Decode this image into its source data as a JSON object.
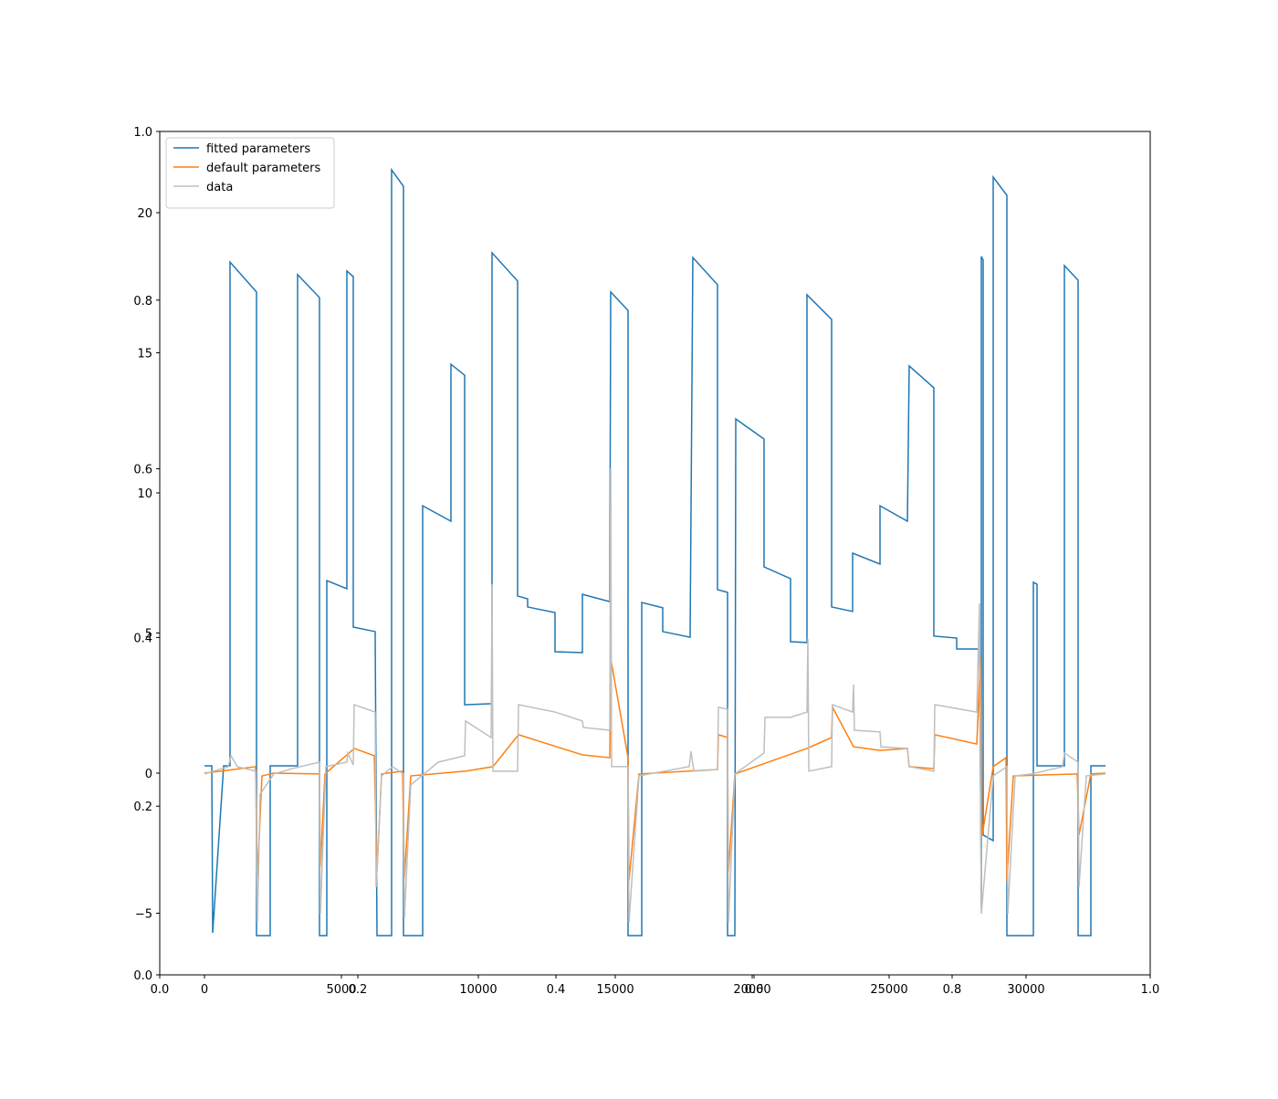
{
  "chart_data": [
    {
      "type": "axes",
      "xlim": [
        0,
        1
      ],
      "ylim": [
        0,
        1
      ],
      "xticks": [
        {
          "value": 0,
          "label": "0.0"
        },
        0.2,
        0.4,
        0.6,
        0.8,
        {
          "value": 1,
          "label": "1.0"
        }
      ],
      "yticks": [
        {
          "value": 0,
          "label": "0.0"
        },
        0.2,
        0.4,
        0.6,
        0.8,
        {
          "value": 1,
          "label": "1.0"
        }
      ]
    },
    {
      "type": "line",
      "xlim": [
        -1633,
        34533
      ],
      "ylim": [
        -7.2,
        22.9
      ],
      "xticks": [
        0,
        5000,
        10000,
        15000,
        20000,
        25000,
        30000
      ],
      "yticks": [
        {
          "value": -5,
          "label": "−5"
        },
        0,
        5,
        10,
        15,
        20
      ],
      "legend": "upper left",
      "series": [
        {
          "name": "fitted parameters",
          "color": "#1f77b4",
          "x": [
            0,
            267,
            300,
            700,
            933,
            933,
            1900,
            1900,
            2400,
            2400,
            3400,
            3400,
            4200,
            4200,
            4467,
            4467,
            5200,
            5200,
            5433,
            5433,
            6233,
            6300,
            6833,
            6833,
            7267,
            7267,
            7967,
            7967,
            9000,
            9000,
            9500,
            9500,
            10500,
            10500,
            11433,
            11433,
            11800,
            11800,
            12800,
            12800,
            13800,
            13800,
            14800,
            14833,
            15467,
            15467,
            15967,
            15967,
            16733,
            16733,
            17733,
            17833,
            18733,
            18733,
            19100,
            19100,
            19367,
            19400,
            20433,
            20433,
            21400,
            21400,
            22000,
            22000,
            22900,
            22900,
            23667,
            23667,
            24667,
            24667,
            25667,
            25733,
            26633,
            26633,
            27467,
            27467,
            28300,
            28367,
            28367,
            28433,
            28433,
            28800,
            28800,
            29300,
            29300,
            30267,
            30267,
            30400,
            30400,
            31400,
            31400,
            31900,
            31900,
            32367,
            32367,
            32900
          ],
          "values": [
            0.26,
            0.26,
            -5.7,
            0.26,
            0.26,
            18.24,
            17.17,
            -5.8,
            -5.8,
            0.26,
            0.26,
            17.79,
            16.97,
            -5.8,
            -5.8,
            6.87,
            6.58,
            17.92,
            17.72,
            5.21,
            5.05,
            -5.8,
            -5.8,
            21.53,
            20.94,
            -5.8,
            -5.8,
            9.54,
            8.99,
            14.59,
            14.2,
            2.44,
            2.48,
            18.57,
            17.56,
            6.32,
            6.22,
            5.93,
            5.73,
            4.33,
            4.3,
            6.38,
            6.12,
            17.17,
            16.51,
            -5.8,
            -5.8,
            6.09,
            5.9,
            5.05,
            4.85,
            18.4,
            17.43,
            6.55,
            6.45,
            -5.8,
            -5.8,
            12.64,
            11.92,
            7.36,
            6.94,
            4.69,
            4.66,
            17.07,
            16.19,
            5.93,
            5.77,
            7.85,
            7.46,
            9.54,
            8.99,
            14.53,
            13.75,
            4.89,
            4.82,
            4.43,
            4.43,
            -4.76,
            18.44,
            18.31,
            -2.21,
            -2.41,
            21.27,
            20.62,
            -5.8,
            -5.8,
            6.81,
            6.74,
            0.26,
            0.26,
            18.11,
            17.59,
            -5.8,
            -5.8,
            0.26,
            0.26
          ]
        },
        {
          "name": "default parameters",
          "color": "#ff7f0e",
          "x": [
            0,
            1867,
            1933,
            2100,
            2533,
            4200,
            4233,
            4400,
            5467,
            6200,
            6300,
            6467,
            7233,
            7300,
            7533,
            9533,
            10533,
            11467,
            13800,
            14800,
            14833,
            15467,
            15500,
            15867,
            18733,
            18767,
            19100,
            19133,
            19367,
            22000,
            22900,
            22933,
            23700,
            24667,
            25667,
            25733,
            26633,
            26667,
            28200,
            28333,
            28400,
            28800,
            29267,
            29300,
            29533,
            31867,
            31933,
            32367,
            32900
          ],
          "values": [
            0,
            0.23,
            -3.75,
            -0.1,
            0,
            -0.03,
            -3.35,
            -0.03,
            0.88,
            0.62,
            -3.52,
            -0.03,
            0.07,
            -3.75,
            -0.1,
            0.07,
            0.23,
            1.37,
            0.65,
            0.55,
            4.1,
            0.55,
            -3.84,
            -0.03,
            0.13,
            1.37,
            1.27,
            -3.52,
            -0.03,
            0.88,
            1.27,
            2.35,
            0.94,
            0.81,
            0.88,
            0.23,
            0.16,
            1.37,
            1.04,
            4.1,
            -2.21,
            0.23,
            0.55,
            -3.84,
            -0.1,
            -0.03,
            -2.21,
            -0.03,
            0
          ]
        },
        {
          "name": "data",
          "color": "#bfbfbf",
          "x": [
            0,
            867,
            967,
            1200,
            1867,
            1933,
            2033,
            2533,
            3200,
            4200,
            4233,
            4433,
            5200,
            5233,
            5433,
            5467,
            6233,
            6267,
            6467,
            6867,
            7267,
            7300,
            7533,
            8533,
            9500,
            9533,
            10467,
            10500,
            10533,
            11433,
            11467,
            12800,
            13800,
            13833,
            14800,
            14833,
            14867,
            15467,
            15500,
            15867,
            17700,
            17767,
            17867,
            18733,
            18767,
            19100,
            19133,
            19367,
            20433,
            20467,
            21400,
            22000,
            22033,
            22067,
            22900,
            22933,
            23667,
            23700,
            23733,
            24667,
            24700,
            25667,
            25733,
            26633,
            26667,
            28200,
            28300,
            28367,
            28800,
            29300,
            29333,
            29600,
            30200,
            31333,
            31400,
            31900,
            31933,
            32200,
            32900
          ],
          "values": [
            -0.03,
            0.23,
            0.62,
            0.23,
            0.07,
            -5.34,
            -0.75,
            -0.03,
            0.16,
            0.39,
            -5.02,
            0.23,
            0.39,
            0.72,
            0.29,
            2.44,
            2.18,
            -4.07,
            -0.1,
            0.23,
            -0.03,
            -5.18,
            -0.42,
            0.39,
            0.62,
            1.86,
            1.27,
            6.74,
            0.07,
            0.07,
            2.44,
            2.18,
            1.86,
            1.63,
            1.53,
            10.88,
            0.23,
            0.23,
            -5.34,
            -0.1,
            0.23,
            0.78,
            0.07,
            0.13,
            2.35,
            2.28,
            -5.34,
            -0.03,
            0.72,
            1.99,
            1.99,
            2.18,
            4.79,
            0.07,
            0.23,
            2.44,
            2.18,
            3.16,
            1.53,
            1.47,
            0.94,
            0.88,
            0.23,
            0.07,
            2.44,
            2.18,
            6.06,
            -5.02,
            -0.1,
            0.23,
            -5.02,
            -0.1,
            -0.03,
            0.23,
            0.72,
            0.39,
            -4.07,
            -0.1,
            -0.03
          ]
        }
      ]
    }
  ]
}
